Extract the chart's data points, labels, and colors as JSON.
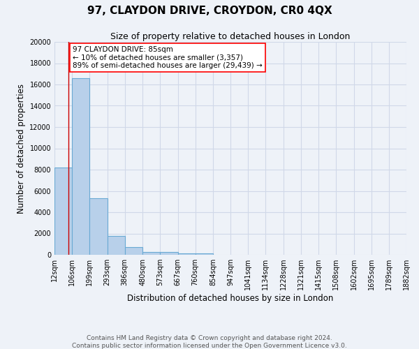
{
  "title": "97, CLAYDON DRIVE, CROYDON, CR0 4QX",
  "subtitle": "Size of property relative to detached houses in London",
  "xlabel": "Distribution of detached houses by size in London",
  "ylabel": "Number of detached properties",
  "bar_left_edges": [
    12,
    106,
    199,
    293,
    386,
    480,
    573,
    667,
    760,
    854,
    947,
    1041,
    1134,
    1228,
    1321,
    1415,
    1508,
    1602,
    1695,
    1789
  ],
  "bar_widths": [
    94,
    93,
    94,
    93,
    94,
    93,
    94,
    93,
    94,
    93,
    94,
    93,
    94,
    93,
    94,
    93,
    94,
    93,
    94,
    93
  ],
  "bar_heights": [
    8200,
    16600,
    5300,
    1750,
    750,
    280,
    230,
    120,
    120,
    0,
    0,
    0,
    0,
    0,
    0,
    0,
    0,
    0,
    0,
    0
  ],
  "bar_color": "#b8d0ea",
  "bar_edge_color": "#6aaad4",
  "ylim": [
    0,
    20000
  ],
  "yticks": [
    0,
    2000,
    4000,
    6000,
    8000,
    10000,
    12000,
    14000,
    16000,
    18000,
    20000
  ],
  "xtick_labels": [
    "12sqm",
    "106sqm",
    "199sqm",
    "293sqm",
    "386sqm",
    "480sqm",
    "573sqm",
    "667sqm",
    "760sqm",
    "854sqm",
    "947sqm",
    "1041sqm",
    "1134sqm",
    "1228sqm",
    "1321sqm",
    "1415sqm",
    "1508sqm",
    "1602sqm",
    "1695sqm",
    "1789sqm",
    "1882sqm"
  ],
  "red_line_x": 85,
  "annotation_line1": "97 CLAYDON DRIVE: 85sqm",
  "annotation_line2": "← 10% of detached houses are smaller (3,357)",
  "annotation_line3": "89% of semi-detached houses are larger (29,439) →",
  "footer_line1": "Contains HM Land Registry data © Crown copyright and database right 2024.",
  "footer_line2": "Contains public sector information licensed under the Open Government Licence v3.0.",
  "background_color": "#eef2f8",
  "grid_color": "#d0d8e8",
  "title_fontsize": 11,
  "subtitle_fontsize": 9,
  "axis_label_fontsize": 8.5,
  "tick_fontsize": 7,
  "footer_fontsize": 6.5,
  "xlim_left": 12,
  "xlim_right": 1882
}
